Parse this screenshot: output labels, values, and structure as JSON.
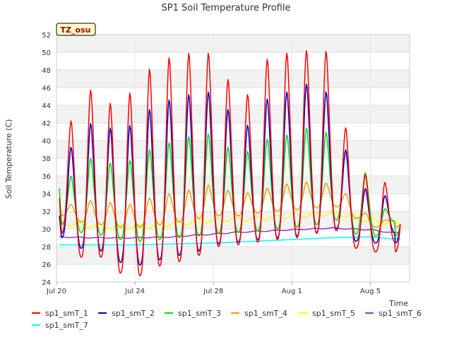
{
  "chart_data": {
    "type": "line",
    "title": "SP1 Soil Temperature Profile",
    "xlabel": "Time",
    "ylabel": "Soil Temperature (C)",
    "ylim": [
      24,
      52
    ],
    "yticks": [
      24,
      26,
      28,
      30,
      32,
      34,
      36,
      38,
      40,
      42,
      44,
      46,
      48,
      50,
      52
    ],
    "xlim": [
      "2023-07-20",
      "2023-08-07"
    ],
    "xticks": [
      {
        "date": "2023-07-20",
        "label": "Jul 20"
      },
      {
        "date": "2023-07-24",
        "label": "Jul 24"
      },
      {
        "date": "2023-07-28",
        "label": "Jul 28"
      },
      {
        "date": "2023-08-01",
        "label": "Aug 1"
      },
      {
        "date": "2023-08-05",
        "label": "Aug 5"
      }
    ],
    "grid": true,
    "legend_position": "bottom",
    "badge": "TZ_osu",
    "series": [
      {
        "name": "sp1_smT_1",
        "color": "#ff0000",
        "kind": "diurnal",
        "start": 33.5,
        "end": 28.5,
        "days": [
          {
            "min": 29.5,
            "max": 42.3
          },
          {
            "min": 26.8,
            "max": 45.8
          },
          {
            "min": 26.8,
            "max": 44.3
          },
          {
            "min": 25.0,
            "max": 45.5
          },
          {
            "min": 24.7,
            "max": 48.2
          },
          {
            "min": 25.8,
            "max": 49.5
          },
          {
            "min": 26.3,
            "max": 50.0
          },
          {
            "min": 27.0,
            "max": 50.0
          },
          {
            "min": 28.0,
            "max": 47.0
          },
          {
            "min": 28.2,
            "max": 45.3
          },
          {
            "min": 28.5,
            "max": 49.3
          },
          {
            "min": 28.8,
            "max": 50.0
          },
          {
            "min": 29.0,
            "max": 50.3
          },
          {
            "min": 29.5,
            "max": 50.2
          },
          {
            "min": 29.8,
            "max": 41.5
          },
          {
            "min": 27.8,
            "max": 36.2
          },
          {
            "min": 27.4,
            "max": 35.3
          }
        ]
      },
      {
        "name": "sp1_smT_2",
        "color": "#0000cc",
        "kind": "diurnal",
        "start": 31.5,
        "end": 29.5,
        "days": [
          {
            "min": 29.0,
            "max": 39.3
          },
          {
            "min": 27.8,
            "max": 42.0
          },
          {
            "min": 27.5,
            "max": 41.5
          },
          {
            "min": 26.2,
            "max": 41.8
          },
          {
            "min": 25.9,
            "max": 43.6
          },
          {
            "min": 26.5,
            "max": 44.7
          },
          {
            "min": 27.0,
            "max": 45.3
          },
          {
            "min": 27.5,
            "max": 45.6
          },
          {
            "min": 28.3,
            "max": 43.6
          },
          {
            "min": 28.5,
            "max": 41.8
          },
          {
            "min": 28.8,
            "max": 44.8
          },
          {
            "min": 29.0,
            "max": 45.6
          },
          {
            "min": 29.2,
            "max": 46.5
          },
          {
            "min": 29.6,
            "max": 45.6
          },
          {
            "min": 30.0,
            "max": 39.0
          },
          {
            "min": 28.6,
            "max": 34.6
          },
          {
            "min": 28.4,
            "max": 33.8
          }
        ]
      },
      {
        "name": "sp1_smT_3",
        "color": "#00dd00",
        "kind": "diurnal",
        "start": 34.6,
        "end": 30.8,
        "days": [
          {
            "min": 30.5,
            "max": 36.0
          },
          {
            "min": 29.6,
            "max": 38.0
          },
          {
            "min": 29.3,
            "max": 37.5
          },
          {
            "min": 28.8,
            "max": 37.8
          },
          {
            "min": 28.6,
            "max": 39.0
          },
          {
            "min": 28.8,
            "max": 39.8
          },
          {
            "min": 29.0,
            "max": 40.5
          },
          {
            "min": 29.2,
            "max": 40.8
          },
          {
            "min": 29.5,
            "max": 39.3
          },
          {
            "min": 29.6,
            "max": 38.8
          },
          {
            "min": 29.8,
            "max": 40.2
          },
          {
            "min": 30.0,
            "max": 40.7
          },
          {
            "min": 30.2,
            "max": 41.5
          },
          {
            "min": 30.5,
            "max": 41.0
          },
          {
            "min": 31.0,
            "max": 38.8
          },
          {
            "min": 29.4,
            "max": 36.4
          },
          {
            "min": 29.2,
            "max": 32.3
          }
        ]
      },
      {
        "name": "sp1_smT_4",
        "color": "#ff9900",
        "kind": "diurnal",
        "start": 33.8,
        "end": 30.9,
        "days": [
          {
            "min": 31.5,
            "max": 32.8
          },
          {
            "min": 30.8,
            "max": 33.2
          },
          {
            "min": 30.5,
            "max": 33.0
          },
          {
            "min": 30.2,
            "max": 32.8
          },
          {
            "min": 30.2,
            "max": 33.5
          },
          {
            "min": 30.5,
            "max": 34.0
          },
          {
            "min": 30.8,
            "max": 34.4
          },
          {
            "min": 31.2,
            "max": 35.0
          },
          {
            "min": 31.5,
            "max": 34.4
          },
          {
            "min": 31.5,
            "max": 34.1
          },
          {
            "min": 31.8,
            "max": 34.6
          },
          {
            "min": 32.0,
            "max": 35.1
          },
          {
            "min": 32.2,
            "max": 35.3
          },
          {
            "min": 32.4,
            "max": 35.2
          },
          {
            "min": 32.5,
            "max": 34.0
          },
          {
            "min": 31.2,
            "max": 31.8
          },
          {
            "min": 30.2,
            "max": 31.0
          }
        ]
      },
      {
        "name": "sp1_smT_5",
        "color": "#ffff00",
        "kind": "trend",
        "points": [
          [
            0,
            30.7
          ],
          [
            1,
            30.5
          ],
          [
            2,
            30.3
          ],
          [
            3,
            30.2
          ],
          [
            4,
            30.2
          ],
          [
            5,
            30.3
          ],
          [
            6,
            30.6
          ],
          [
            7,
            30.8
          ],
          [
            8,
            31.0
          ],
          [
            9,
            31.1
          ],
          [
            10,
            31.2
          ],
          [
            11,
            31.3
          ],
          [
            12,
            31.5
          ],
          [
            13,
            31.6
          ],
          [
            14,
            31.8
          ],
          [
            15,
            31.5
          ],
          [
            16,
            30.9
          ],
          [
            17,
            30.7
          ]
        ],
        "wiggle": 0.25
      },
      {
        "name": "sp1_smT_6",
        "color": "#9933cc",
        "kind": "trend",
        "points": [
          [
            0,
            29.1
          ],
          [
            1,
            29.05
          ],
          [
            2,
            29.0
          ],
          [
            3,
            29.0
          ],
          [
            4,
            29.0
          ],
          [
            5,
            29.05
          ],
          [
            6,
            29.1
          ],
          [
            7,
            29.3
          ],
          [
            8,
            29.4
          ],
          [
            9,
            29.6
          ],
          [
            10,
            29.7
          ],
          [
            11,
            29.8
          ],
          [
            12,
            29.9
          ],
          [
            13,
            30.0
          ],
          [
            14,
            30.1
          ],
          [
            15,
            30.0
          ],
          [
            16,
            29.9
          ],
          [
            17,
            29.6
          ]
        ],
        "wiggle": 0.05
      },
      {
        "name": "sp1_smT_7",
        "color": "#00ffff",
        "kind": "trend",
        "points": [
          [
            0,
            28.2
          ],
          [
            2,
            28.2
          ],
          [
            4,
            28.2
          ],
          [
            6,
            28.3
          ],
          [
            8,
            28.4
          ],
          [
            10,
            28.6
          ],
          [
            12,
            28.8
          ],
          [
            14,
            29.0
          ],
          [
            16,
            29.1
          ],
          [
            17,
            28.9
          ]
        ],
        "wiggle": 0.0
      }
    ]
  }
}
